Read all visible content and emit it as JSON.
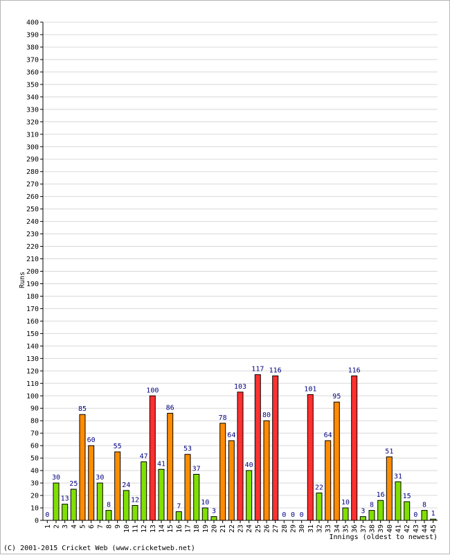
{
  "chart_data": {
    "type": "bar",
    "ylabel": "Runs",
    "xlabel": "Innings (oldest to newest)",
    "ylim": [
      0,
      400
    ],
    "y_tick_step": 10,
    "grid": true,
    "categories": [
      "1",
      "2",
      "3",
      "4",
      "5",
      "6",
      "7",
      "8",
      "9",
      "10",
      "11",
      "12",
      "13",
      "14",
      "15",
      "16",
      "17",
      "18",
      "19",
      "20",
      "21",
      "22",
      "23",
      "24",
      "25",
      "26",
      "27",
      "28",
      "29",
      "30",
      "31",
      "32",
      "33",
      "34",
      "35",
      "36",
      "37",
      "38",
      "39",
      "40",
      "41",
      "42",
      "43",
      "44",
      "45"
    ],
    "values": [
      0,
      30,
      13,
      25,
      85,
      60,
      30,
      8,
      55,
      24,
      12,
      47,
      100,
      41,
      86,
      7,
      53,
      37,
      10,
      3,
      78,
      64,
      103,
      40,
      117,
      80,
      116,
      0,
      0,
      0,
      101,
      22,
      64,
      95,
      10,
      116,
      3,
      8,
      16,
      51,
      31,
      15,
      0,
      8,
      1
    ],
    "legend_colors": {
      "under_50": "#80e000",
      "fifty_plus": "#ff8c00",
      "hundred_plus": "#ff3030"
    }
  },
  "footer": "(C) 2001-2015 Cricket Web (www.cricketweb.net)"
}
